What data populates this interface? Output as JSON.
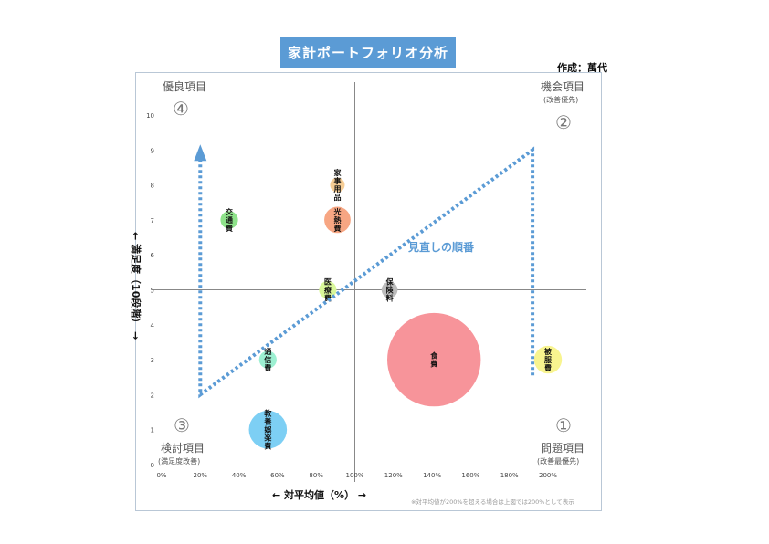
{
  "header": {
    "title": "家計ポートフォリオ分析",
    "author": "作成：萬代"
  },
  "quadrants": [
    {
      "id": 4,
      "title": "優良項目",
      "sub": "",
      "num": "④"
    },
    {
      "id": 2,
      "title": "機会項目",
      "sub": "(改善優先)",
      "num": "②"
    },
    {
      "id": 3,
      "title": "検討項目",
      "sub": "(満足度改善)",
      "num": "③"
    },
    {
      "id": 1,
      "title": "問題項目",
      "sub": "(改善最優先)",
      "num": "①"
    }
  ],
  "arrow_label": "見直しの順番",
  "note": "※対平均値が200%を超える場合は上図では200%として表示",
  "colors": {
    "accent": "#5b9bd5",
    "dotted_path": "#5b9bd5"
  },
  "chart_data": {
    "type": "scatter",
    "bubble": true,
    "xlabel": "← 対平均値（%） →",
    "ylabel": "← 満足度（10段階） →",
    "x_ticks": [
      "0%",
      "20%",
      "40%",
      "60%",
      "80%",
      "100%",
      "120%",
      "140%",
      "160%",
      "180%",
      "200%"
    ],
    "y_ticks": [
      "0",
      "1",
      "2",
      "3",
      "4",
      "5",
      "6",
      "7",
      "8",
      "9",
      "10"
    ],
    "xlim": [
      0,
      200
    ],
    "ylim": [
      0,
      10
    ],
    "grid": false,
    "quadrant_lines": {
      "x": 100,
      "y": 5
    },
    "review_path": [
      [
        20,
        9
      ],
      [
        20,
        2
      ],
      [
        192,
        9
      ],
      [
        192,
        2.5
      ]
    ],
    "points": [
      {
        "label": "交通費",
        "x": 35,
        "y": 7,
        "size": 0.6,
        "color": "#8ee28a"
      },
      {
        "label": "家事用品",
        "x": 91,
        "y": 8,
        "size": 0.5,
        "color": "#f6cd95"
      },
      {
        "label": "光熱費",
        "x": 91,
        "y": 7,
        "size": 0.9,
        "color": "#f7a683"
      },
      {
        "label": "医療費",
        "x": 86,
        "y": 5,
        "size": 0.6,
        "color": "#d9f79a"
      },
      {
        "label": "保険料",
        "x": 118,
        "y": 5,
        "size": 0.55,
        "color": "#bcbcbc"
      },
      {
        "label": "通信費",
        "x": 55,
        "y": 3,
        "size": 0.6,
        "color": "#9df0d2"
      },
      {
        "label": "食費",
        "x": 141,
        "y": 3,
        "size": 3.2,
        "color": "#f7949a"
      },
      {
        "label": "被服費",
        "x": 200,
        "y": 3,
        "size": 0.95,
        "color": "#f8f48f"
      },
      {
        "label": "教養娯楽費",
        "x": 55,
        "y": 1,
        "size": 1.3,
        "color": "#7dcff4"
      }
    ]
  }
}
